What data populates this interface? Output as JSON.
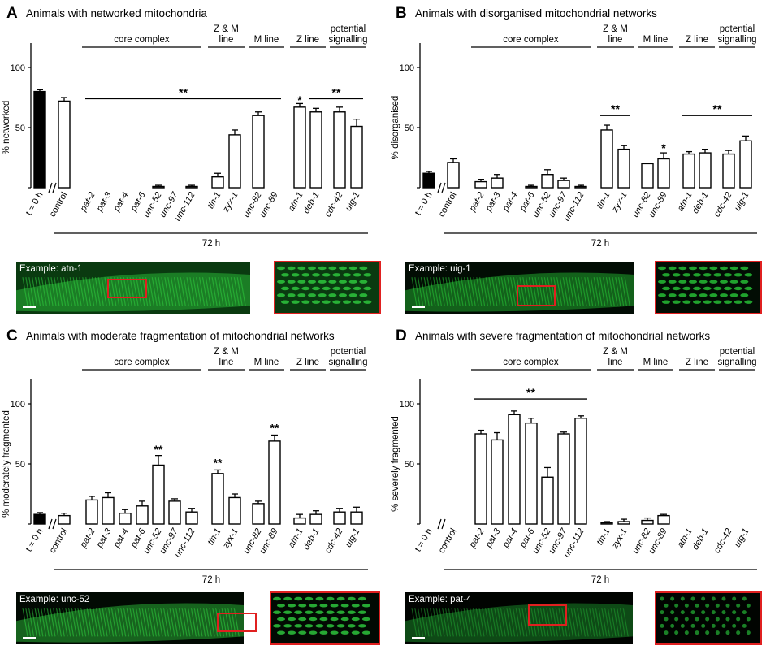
{
  "figure": {
    "time_label": "72 h",
    "categories": [
      "t = 0 h",
      "control",
      "pat-2",
      "pat-3",
      "pat-4",
      "pat-6",
      "unc-52",
      "unc-97",
      "unc-112",
      "tln-1",
      "zyx-1",
      "unc-82",
      "unc-89",
      "atn-1",
      "deb-1",
      "cdc-42",
      "uig-1"
    ],
    "italic_categories": [
      "pat-2",
      "pat-3",
      "pat-4",
      "pat-6",
      "unc-52",
      "unc-97",
      "unc-112",
      "tln-1",
      "zyx-1",
      "unc-82",
      "unc-89",
      "atn-1",
      "deb-1",
      "cdc-42",
      "uig-1"
    ],
    "groups": [
      {
        "label": "core complex",
        "members": [
          "pat-2",
          "unc-112"
        ]
      },
      {
        "label": "Z & M\nline",
        "members": [
          "tln-1",
          "zyx-1"
        ]
      },
      {
        "label": "M line",
        "members": [
          "unc-82",
          "unc-89"
        ]
      },
      {
        "label": "Z line",
        "members": [
          "atn-1",
          "deb-1"
        ]
      },
      {
        "label": "potential\nsignalling",
        "members": [
          "cdc-42",
          "uig-1"
        ]
      }
    ],
    "colors": {
      "filled_bar": "#000000",
      "open_bar": "#ffffff",
      "highlight_box": "#e02020",
      "micrograph_green": "#22cc33"
    }
  },
  "chart_data": [
    {
      "panel": "A",
      "type": "bar",
      "title": "Animals with networked mitochondria",
      "ylabel": "% networked",
      "ylim": [
        0,
        100
      ],
      "yticks": [
        "50",
        "100"
      ],
      "categories": [
        "t = 0 h",
        "control",
        "pat-2",
        "pat-3",
        "pat-4",
        "pat-6",
        "unc-52",
        "unc-97",
        "unc-112",
        "tln-1",
        "zyx-1",
        "unc-82",
        "unc-89",
        "atn-1",
        "deb-1",
        "cdc-42",
        "uig-1"
      ],
      "values": [
        80,
        72,
        0,
        0,
        0,
        0,
        1,
        0,
        1,
        9,
        44,
        60,
        0,
        67,
        63,
        63,
        51
      ],
      "errors": [
        1.5,
        3,
        0,
        0,
        0,
        0,
        1,
        0,
        1,
        3,
        4,
        3,
        0,
        3,
        3,
        4,
        6
      ],
      "significance": [
        {
          "label": "**",
          "from": "pat-2",
          "to": "unc-89",
          "y": 74
        },
        {
          "label": "*",
          "at": "atn-1",
          "y": 73
        },
        {
          "label": "**",
          "from": "deb-1",
          "to": "uig-1",
          "y": 74
        }
      ],
      "example": "Example: atn-1"
    },
    {
      "panel": "B",
      "type": "bar",
      "title": "Animals with disorganised mitochondrial networks",
      "ylabel": "% disorganised",
      "ylim": [
        0,
        100
      ],
      "yticks": [
        "50",
        "100"
      ],
      "categories": [
        "t = 0 h",
        "control",
        "pat-2",
        "pat-3",
        "pat-4",
        "pat-6",
        "unc-52",
        "unc-97",
        "unc-112",
        "tln-1",
        "zyx-1",
        "unc-82",
        "unc-89",
        "atn-1",
        "deb-1",
        "cdc-42",
        "uig-1"
      ],
      "values": [
        12,
        21,
        5,
        8,
        0,
        1,
        11,
        6,
        1,
        48,
        32,
        20,
        24,
        28,
        29,
        28,
        39
      ],
      "errors": [
        1.5,
        3,
        2,
        3,
        0,
        1,
        4,
        2,
        1,
        4,
        3,
        0,
        5,
        2,
        3,
        3,
        4
      ],
      "significance": [
        {
          "label": "**",
          "from": "tln-1",
          "to": "zyx-1",
          "y": 60
        },
        {
          "label": "*",
          "at": "unc-89",
          "y": 33
        },
        {
          "label": "**",
          "from": "atn-1",
          "to": "uig-1",
          "y": 60
        }
      ],
      "example": "Example: uig-1"
    },
    {
      "panel": "C",
      "type": "bar",
      "title": "Animals with moderate fragmentation of mitochondrial networks",
      "ylabel": "% moderately fragmented",
      "ylim": [
        0,
        100
      ],
      "yticks": [
        "50",
        "100"
      ],
      "categories": [
        "t = 0 h",
        "control",
        "pat-2",
        "pat-3",
        "pat-4",
        "pat-6",
        "unc-52",
        "unc-97",
        "unc-112",
        "tln-1",
        "zyx-1",
        "unc-82",
        "unc-89",
        "atn-1",
        "deb-1",
        "cdc-42",
        "uig-1"
      ],
      "values": [
        8,
        7,
        20,
        22,
        9,
        15,
        49,
        19,
        10,
        42,
        22,
        17,
        69,
        5,
        8,
        10,
        10
      ],
      "errors": [
        1.5,
        2,
        3,
        4,
        3,
        4,
        8,
        2,
        3,
        3,
        3,
        2,
        5,
        3,
        3,
        3,
        4
      ],
      "significance": [
        {
          "label": "**",
          "at": "unc-52",
          "y": 62
        },
        {
          "label": "**",
          "at": "tln-1",
          "y": 51
        },
        {
          "label": "**",
          "at": "unc-89",
          "y": 80
        }
      ],
      "example": "Example: unc-52"
    },
    {
      "panel": "D",
      "type": "bar",
      "title": "Animals with severe fragmentation of mitochondrial networks",
      "ylabel": "% severely fragmented",
      "ylim": [
        0,
        100
      ],
      "yticks": [
        "50",
        "100"
      ],
      "categories": [
        "t = 0 h",
        "control",
        "pat-2",
        "pat-3",
        "pat-4",
        "pat-6",
        "unc-52",
        "unc-97",
        "unc-112",
        "tln-1",
        "zyx-1",
        "unc-82",
        "unc-89",
        "atn-1",
        "deb-1",
        "cdc-42",
        "uig-1"
      ],
      "values": [
        0,
        0,
        75,
        70,
        91,
        84,
        39,
        75,
        88,
        1,
        2,
        3,
        7,
        0,
        0,
        0,
        0
      ],
      "errors": [
        0,
        0,
        3,
        6,
        3,
        4,
        8,
        1.5,
        2,
        1,
        2,
        2,
        1,
        0,
        0,
        0,
        0
      ],
      "significance": [
        {
          "label": "**",
          "from": "pat-2",
          "to": "unc-112",
          "y": 104
        }
      ],
      "example": "Example: pat-4"
    }
  ]
}
